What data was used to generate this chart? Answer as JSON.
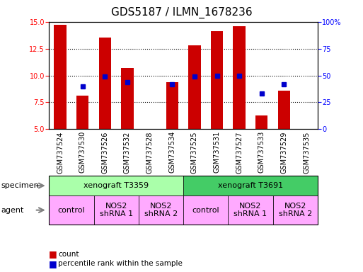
{
  "title": "GDS5187 / ILMN_1678236",
  "samples": [
    "GSM737524",
    "GSM737530",
    "GSM737526",
    "GSM737532",
    "GSM737528",
    "GSM737534",
    "GSM737525",
    "GSM737531",
    "GSM737527",
    "GSM737533",
    "GSM737529",
    "GSM737535"
  ],
  "bar_values": [
    14.7,
    8.1,
    13.5,
    10.7,
    null,
    9.4,
    12.8,
    14.1,
    14.6,
    6.3,
    8.6,
    null
  ],
  "percentile_values": [
    null,
    9.0,
    9.9,
    9.4,
    null,
    9.2,
    9.9,
    10.0,
    10.0,
    8.3,
    9.2,
    null
  ],
  "bar_bottom": 5.0,
  "ylim_left": [
    5,
    15
  ],
  "ylim_right": [
    0,
    100
  ],
  "yticks_left": [
    5,
    7.5,
    10,
    12.5,
    15
  ],
  "yticks_right": [
    0,
    25,
    50,
    75,
    100
  ],
  "ytick_right_labels": [
    "0",
    "25",
    "50",
    "75",
    "100%"
  ],
  "bar_color": "#cc0000",
  "percentile_color": "#0000cc",
  "specimen_groups": [
    {
      "label": "xenograft T3359",
      "start": 0,
      "end": 6,
      "color": "#aaffaa"
    },
    {
      "label": "xenograft T3691",
      "start": 6,
      "end": 12,
      "color": "#44cc66"
    }
  ],
  "agent_groups": [
    {
      "label": "control",
      "start": 0,
      "end": 2
    },
    {
      "label": "NOS2\nshRNA 1",
      "start": 2,
      "end": 4
    },
    {
      "label": "NOS2\nshRNA 2",
      "start": 4,
      "end": 6
    },
    {
      "label": "control",
      "start": 6,
      "end": 8
    },
    {
      "label": "NOS2\nshRNA 1",
      "start": 8,
      "end": 10
    },
    {
      "label": "NOS2\nshRNA 2",
      "start": 10,
      "end": 12
    }
  ],
  "agent_color": "#ffaaff",
  "legend_items": [
    {
      "label": "count",
      "color": "#cc0000",
      "marker": "s"
    },
    {
      "label": "percentile rank within the sample",
      "color": "#0000cc",
      "marker": "s"
    }
  ],
  "specimen_label": "specimen",
  "agent_label": "agent",
  "title_fontsize": 11,
  "tick_fontsize": 7,
  "label_fontsize": 8,
  "bar_width": 0.55
}
